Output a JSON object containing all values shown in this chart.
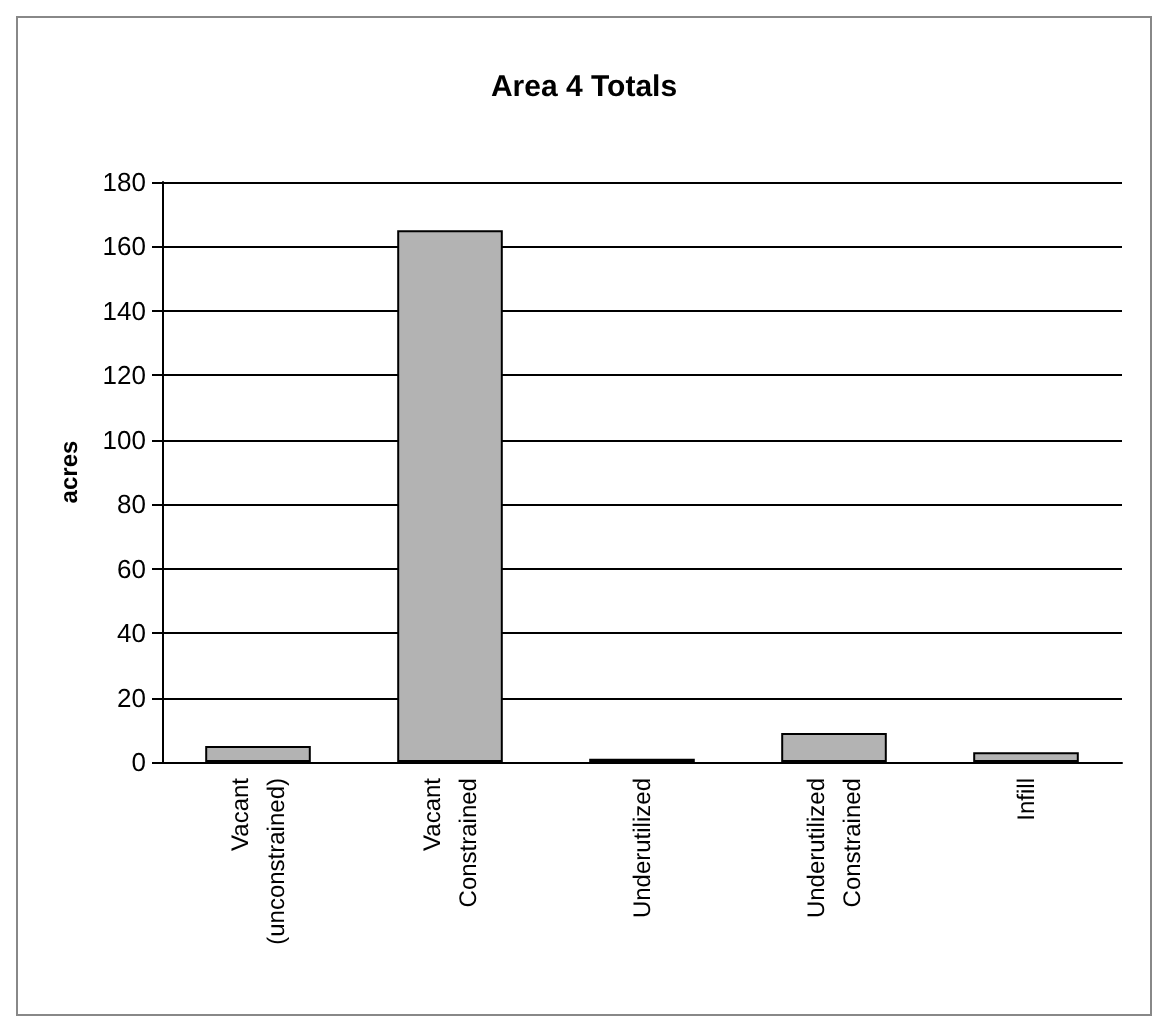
{
  "chart_data": {
    "type": "bar",
    "title": "Area 4 Totals",
    "ylabel": "acres",
    "categories": [
      "Vacant\n(unconstrained)",
      "Vacant\nConstrained",
      "Underutilized",
      "Underutilized\nConstrained",
      "Infill"
    ],
    "values": [
      5,
      165,
      1,
      9,
      3
    ],
    "color": "#b3b3b3",
    "ylim": [
      0,
      180
    ],
    "yticks": [
      0,
      20,
      40,
      60,
      80,
      100,
      120,
      140,
      160,
      180
    ],
    "grid": "y"
  }
}
